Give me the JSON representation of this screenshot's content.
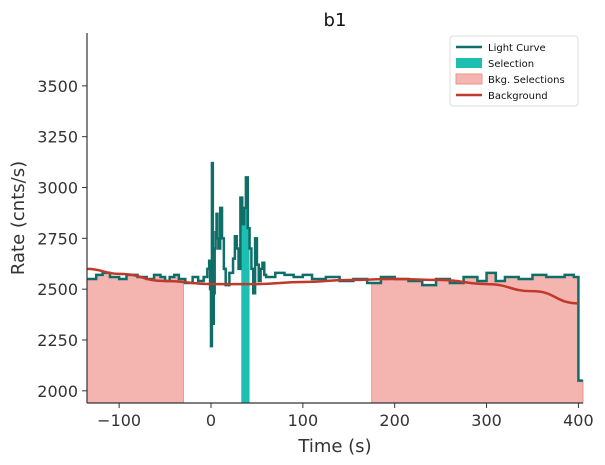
{
  "chart_data": {
    "type": "line",
    "title": "b1",
    "xlabel": "Time (s)",
    "ylabel": "Rate (cnts/s)",
    "xlim": [
      -135,
      405
    ],
    "ylim": [
      1940,
      3760
    ],
    "x_ticks": [
      -100,
      0,
      100,
      200,
      300,
      400
    ],
    "x_tick_labels": [
      "−100",
      "0",
      "100",
      "200",
      "300",
      "400"
    ],
    "y_ticks": [
      2000,
      2250,
      2500,
      2750,
      3000,
      3250,
      3500
    ],
    "y_tick_labels": [
      "2000",
      "2250",
      "2500",
      "2750",
      "3000",
      "3250",
      "3500"
    ],
    "grid": false,
    "legend_position": "top-right",
    "legend": [
      {
        "label": "Light Curve",
        "kind": "line",
        "color": "#0f6e68"
      },
      {
        "label": "Selection",
        "kind": "patch",
        "color": "#1cbfb2"
      },
      {
        "label": "Bkg. Selections",
        "kind": "patch",
        "color": "#f4b5b0"
      },
      {
        "label": "Background",
        "kind": "line",
        "color": "#c0392b"
      }
    ],
    "light_curve": {
      "x": [
        -135,
        -125,
        -118,
        -110,
        -100,
        -92,
        -80,
        -70,
        -62,
        -55,
        -50,
        -45,
        -40,
        -35,
        -28,
        -20,
        -14,
        -8,
        -4,
        -2,
        -1,
        0,
        1,
        2,
        3,
        4,
        5,
        6,
        7,
        8,
        10,
        12,
        14,
        16,
        20,
        24,
        26,
        28,
        30,
        32,
        34,
        36,
        38,
        40,
        42,
        44,
        46,
        48,
        50,
        52,
        54,
        56,
        58,
        60,
        70,
        80,
        90,
        100,
        110,
        125,
        140,
        155,
        170,
        185,
        200,
        215,
        230,
        245,
        260,
        275,
        290,
        300,
        310,
        320,
        335,
        350,
        365,
        375,
        385,
        395,
        400,
        405
      ],
      "y": [
        2550,
        2570,
        2580,
        2560,
        2550,
        2570,
        2560,
        2550,
        2570,
        2560,
        2540,
        2560,
        2570,
        2550,
        2530,
        2560,
        2540,
        2560,
        2600,
        2640,
        2500,
        2220,
        3120,
        2330,
        2480,
        2700,
        2780,
        2870,
        2750,
        2700,
        2900,
        2750,
        2600,
        2520,
        2580,
        2650,
        2760,
        2700,
        2600,
        2950,
        2820,
        2900,
        3050,
        2800,
        2700,
        2600,
        2480,
        2750,
        2620,
        2540,
        2600,
        2630,
        2570,
        2560,
        2580,
        2570,
        2560,
        2570,
        2550,
        2560,
        2540,
        2550,
        2530,
        2560,
        2550,
        2540,
        2520,
        2550,
        2530,
        2560,
        2540,
        2580,
        2540,
        2560,
        2550,
        2570,
        2560,
        2560,
        2570,
        2560,
        2050,
        2050
      ]
    },
    "selection": {
      "x_start": 33,
      "x_end": 42
    },
    "bkg_selections": [
      {
        "x_start": -135,
        "x_end": -30
      },
      {
        "x_start": 175,
        "x_end": 405
      }
    ],
    "background_fit": {
      "x": [
        -135,
        -100,
        -50,
        0,
        50,
        100,
        150,
        200,
        250,
        300,
        350,
        400
      ],
      "y": [
        2600,
        2575,
        2540,
        2525,
        2525,
        2535,
        2545,
        2550,
        2545,
        2525,
        2490,
        2430
      ]
    }
  }
}
